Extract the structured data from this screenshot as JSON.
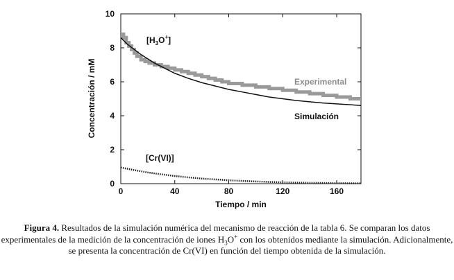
{
  "chart_data": {
    "type": "line",
    "xlabel": "Tiempo / min",
    "ylabel": "Concentración / mM",
    "xlim": [
      0,
      178
    ],
    "ylim": [
      0,
      10
    ],
    "xticks": [
      0,
      40,
      80,
      120,
      160
    ],
    "yticks": [
      0,
      2,
      4,
      6,
      8,
      10
    ],
    "grid": false,
    "series": [
      {
        "name": "Experimental",
        "style": "thick gray stepped line",
        "color": "#9a9a9a",
        "x": [
          0,
          2,
          4,
          6,
          8,
          10,
          12,
          15,
          18,
          21,
          25,
          30,
          35,
          40,
          45,
          50,
          55,
          60,
          65,
          70,
          75,
          80,
          85,
          90,
          95,
          100,
          105,
          110,
          115,
          120,
          125,
          130,
          135,
          140,
          145,
          150,
          155,
          160,
          165,
          170,
          178
        ],
        "y": [
          8.8,
          8.6,
          8.3,
          8.1,
          7.9,
          7.7,
          7.5,
          7.3,
          7.2,
          7.1,
          7.0,
          6.9,
          6.8,
          6.7,
          6.6,
          6.5,
          6.4,
          6.3,
          6.2,
          6.1,
          6.0,
          5.9,
          5.9,
          5.8,
          5.8,
          5.7,
          5.7,
          5.6,
          5.6,
          5.5,
          5.5,
          5.4,
          5.4,
          5.3,
          5.3,
          5.2,
          5.2,
          5.1,
          5.1,
          5.0,
          5.0
        ]
      },
      {
        "name": "Simulación",
        "style": "thin black line",
        "color": "#111111",
        "x": [
          0,
          5,
          10,
          15,
          20,
          25,
          30,
          40,
          50,
          60,
          70,
          80,
          90,
          100,
          110,
          120,
          130,
          140,
          150,
          160,
          170,
          178
        ],
        "y": [
          8.6,
          8.2,
          7.9,
          7.6,
          7.35,
          7.1,
          6.9,
          6.5,
          6.2,
          5.95,
          5.75,
          5.55,
          5.4,
          5.25,
          5.1,
          5.0,
          4.9,
          4.82,
          4.75,
          4.7,
          4.65,
          4.6
        ]
      },
      {
        "name": "[Cr(VI)]",
        "style": "dotted black line",
        "color": "#222222",
        "x": [
          0,
          10,
          20,
          30,
          40,
          50,
          60,
          70,
          80,
          90,
          100,
          110,
          120,
          130,
          140,
          150,
          160,
          170,
          178
        ],
        "y": [
          0.95,
          0.8,
          0.66,
          0.55,
          0.45,
          0.37,
          0.3,
          0.25,
          0.2,
          0.16,
          0.13,
          0.1,
          0.08,
          0.06,
          0.05,
          0.04,
          0.03,
          0.02,
          0.02
        ]
      }
    ],
    "annotations": [
      {
        "label": "h3o",
        "text": "[H3O+]"
      },
      {
        "label": "cr",
        "text": "[Cr(VI)]"
      },
      {
        "label": "exp",
        "text": "Experimental"
      },
      {
        "label": "sim",
        "text": "Simulación"
      }
    ]
  },
  "caption": {
    "lead": "Figura 4.",
    "part1": " Resultados de la simulación numérica del mecanismo de reacción de la tabla 6. Se comparan los datos experimentales de la medición de la concentración de iones H",
    "sub": "3",
    "mid": "O",
    "sup": "+",
    "part2": " con los obtenidos mediante la simulación. Adicionalmente, se presenta la concentración de Cr(VI) en función del tiempo obtenida de la simulación."
  },
  "colors": {
    "experimental": "#9a9a9a",
    "simulation": "#111111",
    "label_gray": "#8c8c8c"
  }
}
